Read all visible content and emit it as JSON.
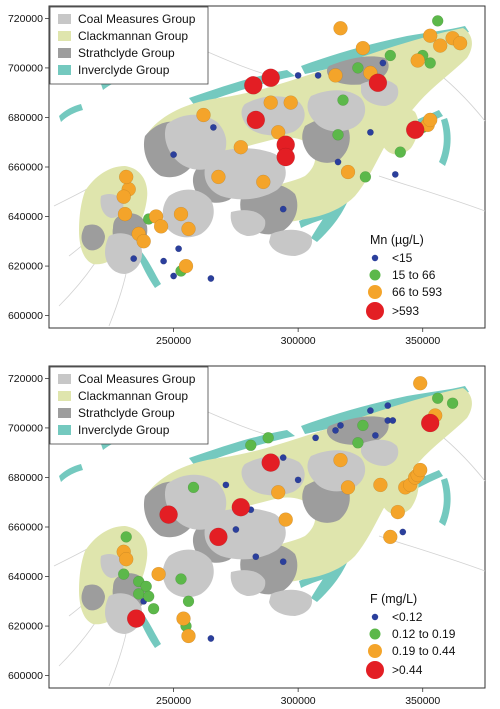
{
  "colors": {
    "coal": "#c7c7c7",
    "clack": "#dfe5ad",
    "strath": "#9d9d9d",
    "inver": "#74c9bf",
    "blue": "#2b3f9c",
    "green": "#5cb84a",
    "orange": "#f4a42a",
    "red": "#e31e24",
    "water": "#b9c9d4"
  },
  "legend_units": {
    "coal": "Coal Measures Group",
    "clack": "Clackmannan Group",
    "strath": "Strathclyde Group",
    "inver": "Inverclyde Group"
  },
  "maps": [
    {
      "id": "mn",
      "param_label": "Mn  (µg/L)",
      "classes": [
        "<15",
        "15 to 66",
        "66 to 593",
        ">593"
      ],
      "x_ticks": [
        "250000",
        "300000",
        "350000"
      ],
      "y_ticks": [
        "720000",
        "700000",
        "680000",
        "660000",
        "640000",
        "620000",
        "600000"
      ],
      "chart_data": {
        "type": "scatter",
        "xlim": [
          200000,
          375000
        ],
        "ylim": [
          595000,
          725000
        ],
        "points": [
          {
            "x": 232000,
            "y": 651000,
            "c": 2
          },
          {
            "x": 231000,
            "y": 656000,
            "c": 2
          },
          {
            "x": 230000,
            "y": 648000,
            "c": 2
          },
          {
            "x": 230500,
            "y": 641000,
            "c": 2
          },
          {
            "x": 236000,
            "y": 633000,
            "c": 2
          },
          {
            "x": 238000,
            "y": 630000,
            "c": 2
          },
          {
            "x": 234000,
            "y": 623000,
            "c": 0
          },
          {
            "x": 243000,
            "y": 640000,
            "c": 2
          },
          {
            "x": 240000,
            "y": 639000,
            "c": 1
          },
          {
            "x": 245000,
            "y": 636000,
            "c": 2
          },
          {
            "x": 253000,
            "y": 641000,
            "c": 2
          },
          {
            "x": 256000,
            "y": 635000,
            "c": 2
          },
          {
            "x": 252000,
            "y": 627000,
            "c": 0
          },
          {
            "x": 246000,
            "y": 622000,
            "c": 0
          },
          {
            "x": 253000,
            "y": 618000,
            "c": 1
          },
          {
            "x": 255000,
            "y": 620000,
            "c": 2
          },
          {
            "x": 250000,
            "y": 616000,
            "c": 0
          },
          {
            "x": 265000,
            "y": 615000,
            "c": 0
          },
          {
            "x": 250000,
            "y": 665000,
            "c": 0
          },
          {
            "x": 262000,
            "y": 681000,
            "c": 2
          },
          {
            "x": 266000,
            "y": 676000,
            "c": 0
          },
          {
            "x": 268000,
            "y": 656000,
            "c": 2
          },
          {
            "x": 277000,
            "y": 668000,
            "c": 2
          },
          {
            "x": 282000,
            "y": 693000,
            "c": 3
          },
          {
            "x": 283000,
            "y": 679000,
            "c": 3
          },
          {
            "x": 286000,
            "y": 654000,
            "c": 2
          },
          {
            "x": 289000,
            "y": 696000,
            "c": 3
          },
          {
            "x": 289000,
            "y": 686000,
            "c": 2
          },
          {
            "x": 292000,
            "y": 674000,
            "c": 2
          },
          {
            "x": 295000,
            "y": 669000,
            "c": 3
          },
          {
            "x": 295000,
            "y": 664000,
            "c": 3
          },
          {
            "x": 297000,
            "y": 686000,
            "c": 2
          },
          {
            "x": 300000,
            "y": 697000,
            "c": 0
          },
          {
            "x": 294000,
            "y": 643000,
            "c": 0
          },
          {
            "x": 308000,
            "y": 697000,
            "c": 0
          },
          {
            "x": 315000,
            "y": 697000,
            "c": 2
          },
          {
            "x": 317000,
            "y": 716000,
            "c": 2
          },
          {
            "x": 318000,
            "y": 687000,
            "c": 1
          },
          {
            "x": 316000,
            "y": 673000,
            "c": 1
          },
          {
            "x": 316000,
            "y": 662000,
            "c": 0
          },
          {
            "x": 320000,
            "y": 658000,
            "c": 2
          },
          {
            "x": 324000,
            "y": 700000,
            "c": 1
          },
          {
            "x": 326000,
            "y": 708000,
            "c": 2
          },
          {
            "x": 329000,
            "y": 698000,
            "c": 2
          },
          {
            "x": 332000,
            "y": 694000,
            "c": 3
          },
          {
            "x": 327000,
            "y": 656000,
            "c": 1
          },
          {
            "x": 329000,
            "y": 674000,
            "c": 0
          },
          {
            "x": 334000,
            "y": 702000,
            "c": 0
          },
          {
            "x": 337000,
            "y": 705000,
            "c": 1
          },
          {
            "x": 339000,
            "y": 657000,
            "c": 0
          },
          {
            "x": 341000,
            "y": 666000,
            "c": 1
          },
          {
            "x": 347000,
            "y": 675000,
            "c": 3
          },
          {
            "x": 350000,
            "y": 676000,
            "c": 1
          },
          {
            "x": 352000,
            "y": 677000,
            "c": 2
          },
          {
            "x": 353000,
            "y": 679000,
            "c": 2
          },
          {
            "x": 348000,
            "y": 703000,
            "c": 2
          },
          {
            "x": 350000,
            "y": 705000,
            "c": 1
          },
          {
            "x": 353000,
            "y": 713000,
            "c": 2
          },
          {
            "x": 353000,
            "y": 702000,
            "c": 1
          },
          {
            "x": 357000,
            "y": 709000,
            "c": 2
          },
          {
            "x": 362000,
            "y": 712000,
            "c": 2
          },
          {
            "x": 356000,
            "y": 719000,
            "c": 1
          },
          {
            "x": 365000,
            "y": 710000,
            "c": 2
          }
        ]
      }
    },
    {
      "id": "f",
      "param_label": "F  (mg/L)",
      "classes": [
        "<0.12",
        "0.12 to 0.19",
        "0.19 to 0.44",
        ">0.44"
      ],
      "x_ticks": [
        "250000",
        "300000",
        "350000"
      ],
      "y_ticks": [
        "720000",
        "700000",
        "680000",
        "660000",
        "640000",
        "620000",
        "600000"
      ],
      "chart_data": {
        "type": "scatter",
        "xlim": [
          200000,
          375000
        ],
        "ylim": [
          595000,
          725000
        ],
        "points": [
          {
            "x": 231000,
            "y": 656000,
            "c": 1
          },
          {
            "x": 230000,
            "y": 650000,
            "c": 2
          },
          {
            "x": 231000,
            "y": 647000,
            "c": 2
          },
          {
            "x": 230000,
            "y": 641000,
            "c": 1
          },
          {
            "x": 236000,
            "y": 638000,
            "c": 1
          },
          {
            "x": 239000,
            "y": 636000,
            "c": 1
          },
          {
            "x": 236000,
            "y": 633000,
            "c": 1
          },
          {
            "x": 238000,
            "y": 630000,
            "c": 0
          },
          {
            "x": 240000,
            "y": 632000,
            "c": 1
          },
          {
            "x": 242000,
            "y": 627000,
            "c": 1
          },
          {
            "x": 235000,
            "y": 623000,
            "c": 3
          },
          {
            "x": 244000,
            "y": 641000,
            "c": 2
          },
          {
            "x": 253000,
            "y": 639000,
            "c": 1
          },
          {
            "x": 256000,
            "y": 630000,
            "c": 1
          },
          {
            "x": 254000,
            "y": 623000,
            "c": 2
          },
          {
            "x": 255000,
            "y": 620000,
            "c": 1
          },
          {
            "x": 256000,
            "y": 616000,
            "c": 2
          },
          {
            "x": 265000,
            "y": 615000,
            "c": 0
          },
          {
            "x": 248000,
            "y": 665000,
            "c": 3
          },
          {
            "x": 258000,
            "y": 676000,
            "c": 1
          },
          {
            "x": 268000,
            "y": 656000,
            "c": 3
          },
          {
            "x": 271000,
            "y": 677000,
            "c": 0
          },
          {
            "x": 275000,
            "y": 659000,
            "c": 0
          },
          {
            "x": 277000,
            "y": 668000,
            "c": 3
          },
          {
            "x": 281000,
            "y": 693000,
            "c": 1
          },
          {
            "x": 281000,
            "y": 667000,
            "c": 0
          },
          {
            "x": 283000,
            "y": 648000,
            "c": 0
          },
          {
            "x": 288000,
            "y": 696000,
            "c": 1
          },
          {
            "x": 289000,
            "y": 686000,
            "c": 3
          },
          {
            "x": 294000,
            "y": 688000,
            "c": 0
          },
          {
            "x": 292000,
            "y": 674000,
            "c": 2
          },
          {
            "x": 295000,
            "y": 663000,
            "c": 2
          },
          {
            "x": 294000,
            "y": 646000,
            "c": 0
          },
          {
            "x": 300000,
            "y": 679000,
            "c": 0
          },
          {
            "x": 307000,
            "y": 696000,
            "c": 0
          },
          {
            "x": 315000,
            "y": 699000,
            "c": 0
          },
          {
            "x": 317000,
            "y": 701000,
            "c": 0
          },
          {
            "x": 317000,
            "y": 687000,
            "c": 2
          },
          {
            "x": 320000,
            "y": 676000,
            "c": 2
          },
          {
            "x": 324000,
            "y": 694000,
            "c": 1
          },
          {
            "x": 326000,
            "y": 701000,
            "c": 1
          },
          {
            "x": 329000,
            "y": 707000,
            "c": 0
          },
          {
            "x": 331000,
            "y": 697000,
            "c": 0
          },
          {
            "x": 333000,
            "y": 677000,
            "c": 2
          },
          {
            "x": 336000,
            "y": 703000,
            "c": 0
          },
          {
            "x": 336000,
            "y": 709000,
            "c": 0
          },
          {
            "x": 338000,
            "y": 703000,
            "c": 0
          },
          {
            "x": 337000,
            "y": 656000,
            "c": 2
          },
          {
            "x": 340000,
            "y": 666000,
            "c": 2
          },
          {
            "x": 343000,
            "y": 676000,
            "c": 2
          },
          {
            "x": 345000,
            "y": 677000,
            "c": 2
          },
          {
            "x": 347000,
            "y": 680000,
            "c": 2
          },
          {
            "x": 348000,
            "y": 681000,
            "c": 2
          },
          {
            "x": 349000,
            "y": 683000,
            "c": 2
          },
          {
            "x": 353000,
            "y": 702000,
            "c": 3
          },
          {
            "x": 355000,
            "y": 705000,
            "c": 2
          },
          {
            "x": 349000,
            "y": 718000,
            "c": 2
          },
          {
            "x": 356000,
            "y": 712000,
            "c": 1
          },
          {
            "x": 362000,
            "y": 710000,
            "c": 1
          },
          {
            "x": 342000,
            "y": 658000,
            "c": 0
          }
        ]
      }
    }
  ]
}
